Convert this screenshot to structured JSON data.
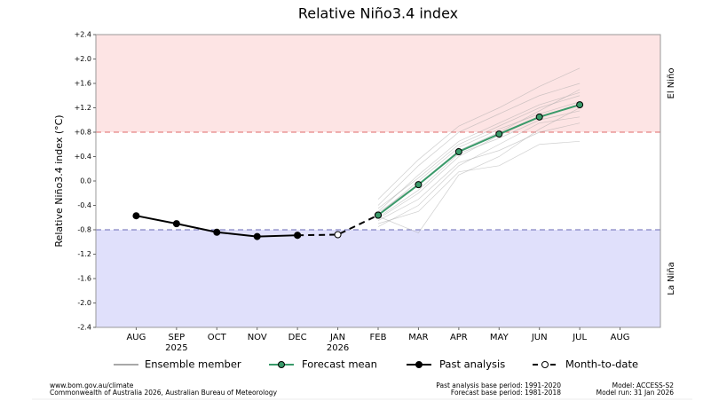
{
  "chart_data": {
    "type": "line",
    "title": "Relative Niño3.4 index",
    "y_label": "Relative Niño3.4 index (°C)",
    "categories": [
      "AUG",
      "SEP",
      "OCT",
      "NOV",
      "DEC",
      "JAN",
      "FEB",
      "MAR",
      "APR",
      "MAY",
      "JUN",
      "JUL",
      "AUG"
    ],
    "category_sublabels": [
      null,
      "2025",
      null,
      null,
      null,
      "2026",
      null,
      null,
      null,
      null,
      null,
      null,
      null
    ],
    "ylim": [
      -2.4,
      2.4
    ],
    "yticks": [
      {
        "value": 2.4,
        "label": "+2.4"
      },
      {
        "value": 2.0,
        "label": "+2.0"
      },
      {
        "value": 1.6,
        "label": "+1.6"
      },
      {
        "value": 1.2,
        "label": "+1.2"
      },
      {
        "value": 0.8,
        "label": "+0.8"
      },
      {
        "value": 0.4,
        "label": "+0.4"
      },
      {
        "value": 0,
        "label": "0.0"
      },
      -0.4,
      -0.8,
      -1.2,
      -1.6,
      {
        "value": -2.0,
        "label": "-2.0"
      },
      -2.4
    ],
    "thresholds": [
      {
        "value": 0.8,
        "label": "El Niño",
        "color": "#e06a6a",
        "fill": "#fde4e4"
      },
      {
        "value": -0.8,
        "label": "La Niña",
        "color": "#6a6ab4",
        "fill": "#e0e0fb"
      }
    ],
    "ensemble": {
      "name": "Ensemble member",
      "color": "#a8a8a8",
      "members": [
        [
          null,
          null,
          null,
          null,
          null,
          null,
          -0.7,
          -0.5,
          0.15,
          0.25,
          0.6,
          0.65,
          null
        ],
        [
          null,
          null,
          null,
          null,
          null,
          null,
          -0.65,
          -0.3,
          0.3,
          0.5,
          0.8,
          0.95,
          null
        ],
        [
          null,
          null,
          null,
          null,
          null,
          null,
          -0.6,
          -0.15,
          0.45,
          0.7,
          1.0,
          1.15,
          null
        ],
        [
          null,
          null,
          null,
          null,
          null,
          null,
          -0.55,
          0.0,
          0.55,
          0.85,
          1.1,
          1.3,
          null
        ],
        [
          null,
          null,
          null,
          null,
          null,
          null,
          -0.5,
          0.1,
          0.65,
          0.95,
          1.25,
          1.45,
          null
        ],
        [
          null,
          null,
          null,
          null,
          null,
          null,
          -0.4,
          0.25,
          0.8,
          1.1,
          1.4,
          1.6,
          null
        ],
        [
          null,
          null,
          null,
          null,
          null,
          null,
          -0.3,
          0.35,
          0.9,
          1.2,
          1.55,
          1.85,
          null
        ],
        [
          null,
          null,
          null,
          null,
          null,
          null,
          -0.75,
          -0.4,
          0.25,
          0.6,
          0.95,
          1.05,
          null
        ],
        [
          null,
          null,
          null,
          null,
          null,
          null,
          -0.62,
          -0.2,
          0.4,
          0.75,
          1.05,
          1.25,
          null
        ],
        [
          null,
          null,
          null,
          null,
          null,
          null,
          -0.45,
          0.05,
          0.6,
          0.9,
          1.2,
          1.4,
          null
        ],
        [
          null,
          null,
          null,
          null,
          null,
          null,
          -0.58,
          -0.85,
          0.1,
          0.4,
          0.85,
          1.2,
          null
        ],
        [
          null,
          null,
          null,
          null,
          null,
          null,
          -0.52,
          -0.05,
          0.5,
          0.8,
          1.15,
          1.5,
          null
        ]
      ]
    },
    "series": [
      {
        "name": "Forecast mean",
        "color": "#3a9a6a",
        "marker_fill": "#3a9a6a",
        "style": "solid",
        "values": [
          null,
          null,
          null,
          null,
          null,
          null,
          -0.56,
          -0.06,
          0.48,
          0.77,
          1.05,
          1.25,
          null
        ]
      },
      {
        "name": "Past analysis",
        "color": "#000000",
        "marker_fill": "#000000",
        "style": "solid",
        "values": [
          -0.57,
          -0.7,
          -0.84,
          -0.91,
          -0.89,
          null,
          null,
          null,
          null,
          null,
          null,
          null,
          null
        ]
      },
      {
        "name": "Month-to-date",
        "color": "#000000",
        "marker_fill": "#ffffff",
        "style": "dashed",
        "values": [
          null,
          null,
          null,
          null,
          -0.89,
          -0.88,
          -0.56,
          null,
          null,
          null,
          null,
          null,
          null
        ]
      }
    ],
    "footer": {
      "left": [
        "www.bom.gov.au/climate",
        "Commonwealth of Australia 2026, Australian Bureau of Meteorology"
      ],
      "middle": [
        "Past analysis base period: 1991-2020",
        "Forecast base period: 1981-2018"
      ],
      "right": [
        "Model: ACCESS-S2",
        "Model run: 31 Jan 2026"
      ]
    }
  }
}
